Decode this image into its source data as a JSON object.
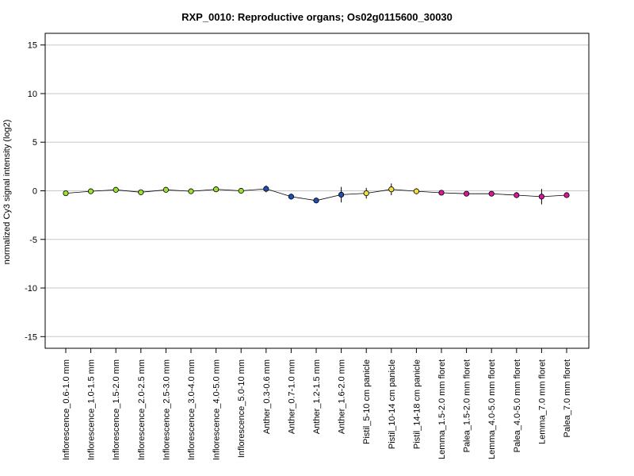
{
  "chart_data": {
    "type": "scatter",
    "title": "RXP_0010: Reproductive organs; Os02g0115600_30030",
    "xlabel": "",
    "ylabel": "normalized Cy3 signal intensity (log2)",
    "ylim": [
      -16.2,
      16.2
    ],
    "yticks": [
      -15,
      -10,
      -5,
      0,
      5,
      10,
      15
    ],
    "grid": "horizontal",
    "connected": true,
    "categories": [
      "Inflorescence_0.6-1.0 mm",
      "Inflorescence_1.0-1.5 mm",
      "Inflorescence_1.5-2.0 mm",
      "Inflorescence_2.0-2.5 mm",
      "Inflorescence_2.5-3.0 mm",
      "Inflorescence_3.0-4.0 mm",
      "Inflorescence_4.0-5.0 mm",
      "Inflorescence_5.0-10 mm",
      "Anther_0.3-0.6 mm",
      "Anther_0.7-1.0 mm",
      "Anther_1.2-1.5 mm",
      "Anther_1.6-2.0 mm",
      "Pistil_5-10 cm panicle",
      "Pistil_10-14 cm panicle",
      "Pistil_14-18 cm panicle",
      "Lemma_1.5-2.0 mm floret",
      "Palea_1.5-2.0 mm floret",
      "Lemma_4.0-5.0 mm floret",
      "Palea_4.0-5.0 mm floret",
      "Lemma_7.0 mm floret",
      "Palea_7.0 mm floret"
    ],
    "values": [
      -0.25,
      -0.05,
      0.1,
      -0.15,
      0.1,
      -0.05,
      0.15,
      0.0,
      0.2,
      -0.6,
      -1.0,
      -0.4,
      -0.25,
      0.15,
      -0.05,
      -0.2,
      -0.3,
      -0.3,
      -0.45,
      -0.6,
      -0.45
    ],
    "errors": [
      0.1,
      0.1,
      0.1,
      0.1,
      0.15,
      0.1,
      0.1,
      0.1,
      0.35,
      0.3,
      0.25,
      0.8,
      0.55,
      0.6,
      0.3,
      0.1,
      0.1,
      0.2,
      0.3,
      0.8,
      0.2
    ],
    "point_colors": [
      "#9be22a",
      "#9be22a",
      "#9be22a",
      "#9be22a",
      "#9be22a",
      "#9be22a",
      "#9be22a",
      "#9be22a",
      "#1f4fb5",
      "#1f4fb5",
      "#1f4fb5",
      "#1f4fb5",
      "#f2e03a",
      "#f2e03a",
      "#f2e03a",
      "#d6189a",
      "#d6189a",
      "#d6189a",
      "#d6189a",
      "#d6189a",
      "#d6189a"
    ]
  }
}
